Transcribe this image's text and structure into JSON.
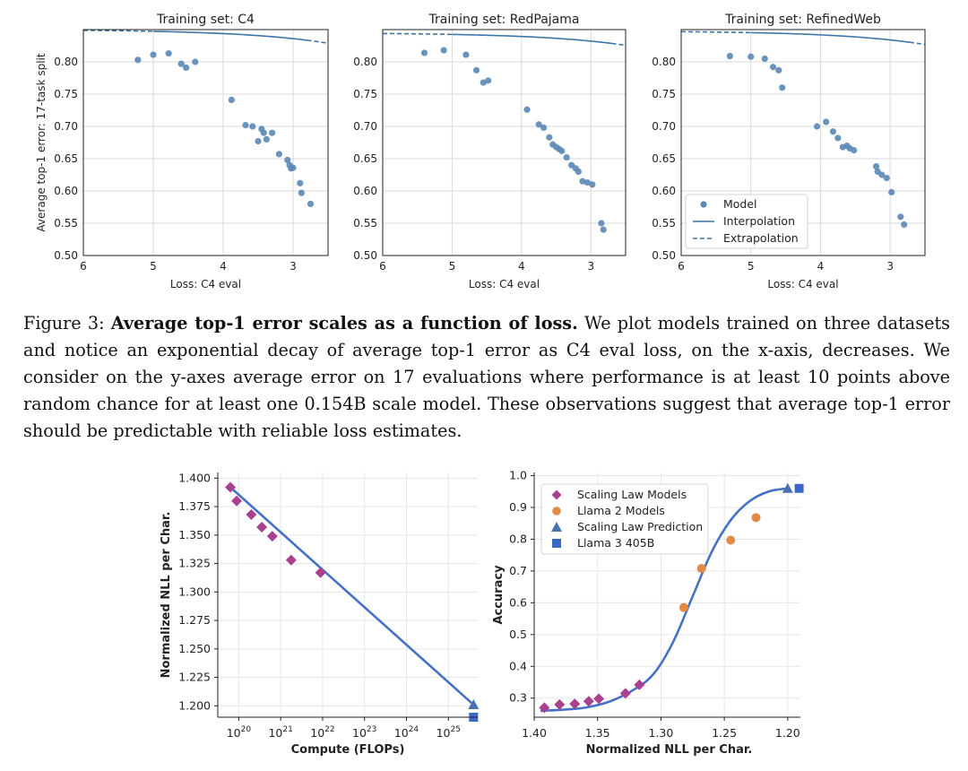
{
  "caption": {
    "label": "Figure 3:",
    "title": "Average top-1 error scales as a function of loss.",
    "body": "We plot models trained on three datasets and notice an exponential decay of average top-1 error as C4 eval loss, on the x-axis, decreases. We consider on the y-axes average error on 17 evaluations where performance is at least 10 points above random chance for at least one 0.154B scale model. These observations suggest that average top-1 error should be predictable with reliable loss estimates."
  },
  "colors": {
    "point": "#5b88b5",
    "curve": "#3f75a8",
    "grid": "#d9d9d9",
    "purple": "#a9418f",
    "orange": "#e38b45",
    "blue_line": "#4472c4",
    "blue_square": "#3a68c8",
    "triangle": "#4a72b0"
  },
  "chart_data": [
    {
      "type": "scatter",
      "title": "Training set: C4",
      "xlabel": "Loss: C4 eval",
      "ylabel": "Average top-1 error: 17-task split",
      "xlim": [
        6.0,
        2.5
      ],
      "ylim": [
        0.5,
        0.85
      ],
      "xticks": [
        "6",
        "5",
        "4",
        "3"
      ],
      "yticks": [
        "0.50",
        "0.55",
        "0.60",
        "0.65",
        "0.70",
        "0.75",
        "0.80"
      ],
      "fit": {
        "a": 0.0012,
        "b": 0.82,
        "c": 0.85,
        "interp_range": [
          2.8,
          5.0
        ]
      },
      "series": [
        {
          "name": "Model",
          "x": [
            5.22,
            5.0,
            4.78,
            4.6,
            4.53,
            4.4,
            3.88,
            3.68,
            3.58,
            3.5,
            3.45,
            3.42,
            3.38,
            3.3,
            3.2,
            3.08,
            3.05,
            3.03,
            2.9,
            2.88,
            2.75,
            3.0
          ],
          "y": [
            0.803,
            0.811,
            0.813,
            0.797,
            0.791,
            0.8,
            0.741,
            0.702,
            0.7,
            0.677,
            0.696,
            0.69,
            0.68,
            0.69,
            0.657,
            0.648,
            0.64,
            0.635,
            0.612,
            0.597,
            0.58,
            0.636
          ]
        }
      ]
    },
    {
      "type": "scatter",
      "title": "Training set: RedPajama",
      "xlabel": "Loss: C4 eval",
      "ylabel": "",
      "xlim": [
        6.0,
        2.5
      ],
      "ylim": [
        0.5,
        0.85
      ],
      "xticks": [
        "6",
        "5",
        "4",
        "3"
      ],
      "yticks": [
        "0.50",
        "0.55",
        "0.60",
        "0.65",
        "0.70",
        "0.75",
        "0.80"
      ],
      "fit": {
        "a": 0.0011,
        "b": 0.82,
        "c": 0.845,
        "interp_range": [
          2.7,
          5.0
        ]
      },
      "series": [
        {
          "name": "Model",
          "x": [
            5.4,
            5.12,
            4.8,
            4.65,
            4.55,
            4.48,
            3.92,
            3.75,
            3.68,
            3.6,
            3.55,
            3.5,
            3.46,
            3.42,
            3.35,
            3.28,
            3.22,
            3.18,
            3.12,
            3.05,
            2.98,
            2.85,
            2.82
          ],
          "y": [
            0.814,
            0.818,
            0.811,
            0.787,
            0.768,
            0.771,
            0.726,
            0.703,
            0.698,
            0.683,
            0.672,
            0.668,
            0.665,
            0.662,
            0.652,
            0.64,
            0.635,
            0.63,
            0.615,
            0.613,
            0.61,
            0.55,
            0.54
          ]
        }
      ]
    },
    {
      "type": "scatter",
      "title": "Training set: RefinedWeb",
      "xlabel": "Loss: C4 eval",
      "ylabel": "",
      "xlim": [
        6.0,
        2.5
      ],
      "ylim": [
        0.5,
        0.85
      ],
      "xticks": [
        "6",
        "5",
        "4",
        "3"
      ],
      "yticks": [
        "0.50",
        "0.55",
        "0.60",
        "0.65",
        "0.70",
        "0.75",
        "0.80"
      ],
      "fit": {
        "a": 0.0012,
        "b": 0.82,
        "c": 0.848,
        "interp_range": [
          2.72,
          5.0
        ]
      },
      "legend": {
        "placement": "lower-right",
        "entries": [
          "Model",
          "Interpolation",
          "Extrapolation"
        ]
      },
      "series": [
        {
          "name": "Model",
          "x": [
            5.3,
            5.0,
            4.8,
            4.68,
            4.6,
            4.55,
            4.05,
            3.92,
            3.82,
            3.75,
            3.68,
            3.62,
            3.58,
            3.52,
            3.2,
            3.18,
            3.12,
            3.05,
            2.98,
            2.85,
            2.8
          ],
          "y": [
            0.809,
            0.808,
            0.805,
            0.792,
            0.787,
            0.76,
            0.7,
            0.707,
            0.692,
            0.682,
            0.668,
            0.67,
            0.666,
            0.663,
            0.638,
            0.63,
            0.625,
            0.62,
            0.598,
            0.56,
            0.548
          ]
        }
      ]
    },
    {
      "type": "scatter",
      "title": "",
      "xlabel": "Compute (FLOPs)",
      "ylabel": "Normalized NLL per Char.",
      "xscale": "log",
      "xlim": [
        19.5,
        25.7
      ],
      "ylim": [
        1.19,
        1.405
      ],
      "xticks": [
        "10^20",
        "10^21",
        "10^22",
        "10^23",
        "10^24",
        "10^25"
      ],
      "yticks": [
        "1.200",
        "1.225",
        "1.250",
        "1.275",
        "1.300",
        "1.325",
        "1.350",
        "1.375",
        "1.400"
      ],
      "fit_line": {
        "x": [
          19.8,
          25.6
        ],
        "y": [
          1.392,
          1.201
        ]
      },
      "series": [
        {
          "name": "Scaling Law Models",
          "x": [
            19.8,
            19.95,
            20.3,
            20.55,
            20.8,
            21.25,
            21.95
          ],
          "y": [
            1.392,
            1.38,
            1.368,
            1.357,
            1.349,
            1.328,
            1.317
          ]
        },
        {
          "name": "Scaling Law Prediction",
          "x": [
            25.6
          ],
          "y": [
            1.201
          ]
        },
        {
          "name": "Llama 3 405B",
          "x": [
            25.6
          ],
          "y": [
            1.19
          ]
        }
      ]
    },
    {
      "type": "scatter",
      "title": "",
      "xlabel": "Normalized NLL per Char.",
      "ylabel": "Accuracy",
      "xlim": [
        1.4,
        1.19
      ],
      "ylim": [
        0.24,
        1.01
      ],
      "xticks": [
        "1.40",
        "1.35",
        "1.30",
        "1.25",
        "1.20"
      ],
      "yticks": [
        "0.3",
        "0.4",
        "0.5",
        "0.6",
        "0.7",
        "0.8",
        "0.9",
        "1.0"
      ],
      "fit_curve": {
        "x": [
          1.395,
          1.38,
          1.36,
          1.34,
          1.32,
          1.305,
          1.29,
          1.275,
          1.26,
          1.245,
          1.23,
          1.215,
          1.2
        ],
        "y": [
          0.26,
          0.263,
          0.27,
          0.29,
          0.33,
          0.38,
          0.48,
          0.62,
          0.76,
          0.86,
          0.92,
          0.95,
          0.96
        ]
      },
      "legend": {
        "placement": "top-left",
        "entries": [
          "Scaling Law Models",
          "Llama 2 Models",
          "Scaling Law Prediction",
          "Llama 3 405B"
        ]
      },
      "series": [
        {
          "name": "Scaling Law Models",
          "x": [
            1.392,
            1.38,
            1.368,
            1.357,
            1.349,
            1.328,
            1.317
          ],
          "y": [
            0.27,
            0.28,
            0.282,
            0.29,
            0.298,
            0.315,
            0.342
          ]
        },
        {
          "name": "Llama 2 Models",
          "x": [
            1.282,
            1.268,
            1.245,
            1.225
          ],
          "y": [
            0.585,
            0.708,
            0.797,
            0.868
          ]
        },
        {
          "name": "Scaling Law Prediction",
          "x": [
            1.2
          ],
          "y": [
            0.96
          ]
        },
        {
          "name": "Llama 3 405B",
          "x": [
            1.191
          ],
          "y": [
            0.96
          ]
        }
      ]
    }
  ]
}
